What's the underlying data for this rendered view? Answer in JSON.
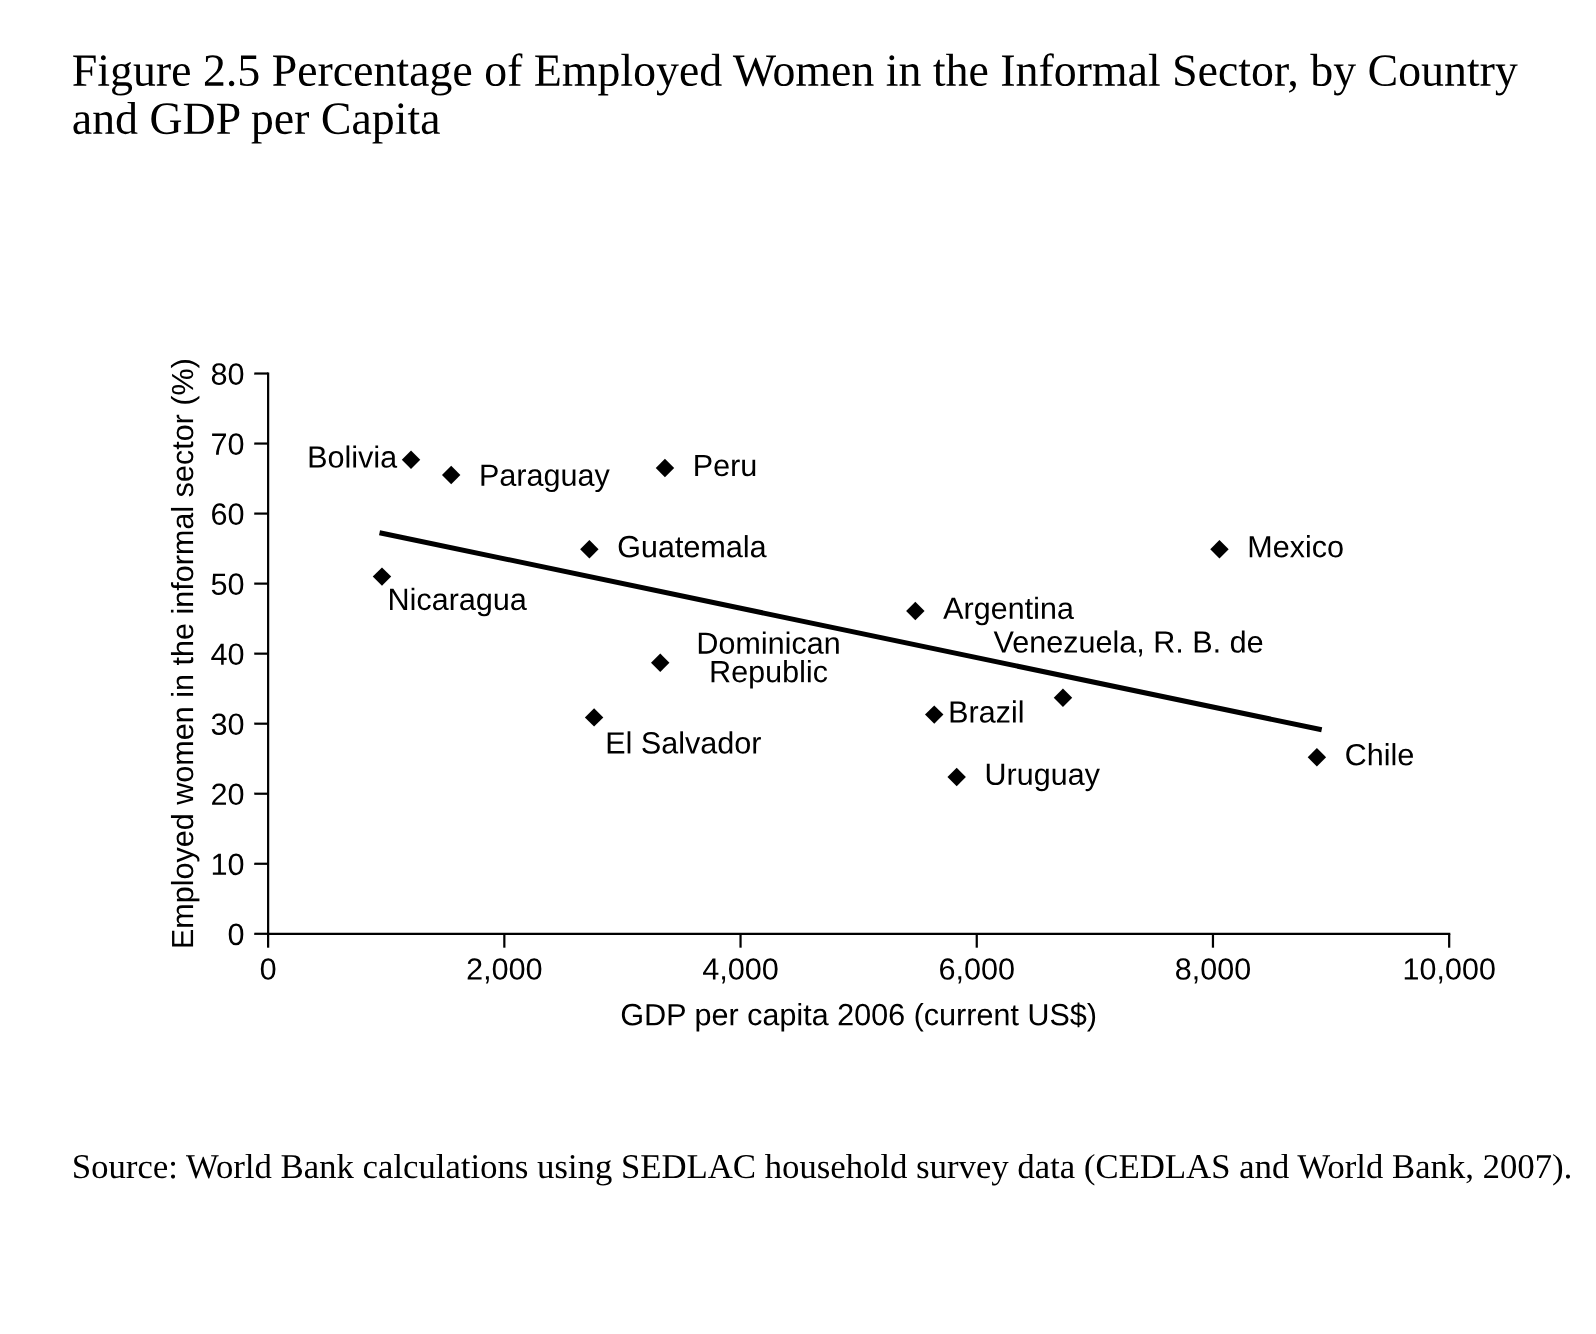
{
  "chart_data": {
    "type": "scatter",
    "title": "Figure 2.5 Percentage of Employed Women in the Informal Sector, by Country and GDP per Capita",
    "xlabel": "GDP per capita 2006 (current US$)",
    "ylabel": "Employed women in the informal sector (%)",
    "xlim": [
      0,
      10000
    ],
    "xticks": [
      0,
      {
        "value": 2000,
        "label": "2,000"
      },
      {
        "value": 4000,
        "label": "4,000"
      },
      {
        "value": 6000,
        "label": "6,000"
      },
      {
        "value": 8000,
        "label": "8,000"
      },
      {
        "value": 10000,
        "label": "10,000"
      }
    ],
    "ylim": [
      0,
      80
    ],
    "yticks": [
      0,
      10,
      20,
      30,
      40,
      50,
      60,
      70,
      80
    ],
    "grid": false,
    "legend": false,
    "marker": "diamond",
    "series": [
      {
        "color": "#000000",
        "x": [
          1210,
          1550,
          3360,
          2720,
          964,
          8055,
          5480,
          3320,
          6730,
          5640,
          2760,
          8880,
          5830
        ],
        "values": [
          67.7,
          65.5,
          66.5,
          54.9,
          51.0,
          54.9,
          46.1,
          38.7,
          33.7,
          31.3,
          30.9,
          25.2,
          22.4
        ]
      },
      {
        "type": "line",
        "marker": "none",
        "color": "#000000",
        "x": [
          964,
          8900
        ],
        "values": [
          57.2,
          29.2
        ]
      }
    ],
    "annotations": [
      {
        "text": "Bolivia",
        "x": 1210,
        "y": 67.7
      },
      {
        "text": "Paraguay",
        "x": 1550,
        "y": 65.5
      },
      {
        "text": "Peru",
        "x": 3360,
        "y": 66.5
      },
      {
        "text": "Guatemala",
        "x": 2720,
        "y": 54.9
      },
      {
        "text": "Nicaragua",
        "x": 964,
        "y": 51.0
      },
      {
        "text": "Mexico",
        "x": 8055,
        "y": 54.9
      },
      {
        "text": "Argentina",
        "x": 5480,
        "y": 46.1
      },
      {
        "text": "Dominican\nRepublic",
        "x": 3320,
        "y": 38.7
      },
      {
        "text": "Venezuela, R. B. de",
        "x": 6730,
        "y": 33.7
      },
      {
        "text": "Brazil",
        "x": 5640,
        "y": 31.3
      },
      {
        "text": "El Salvador",
        "x": 2760,
        "y": 30.9
      },
      {
        "text": "Chile",
        "x": 8880,
        "y": 25.2
      },
      {
        "text": "Uruguay",
        "x": 5830,
        "y": 22.4
      },
      "Source: World Bank calculations using SEDLAC household survey data (CEDLAS and World Bank, 2007)."
    ]
  }
}
